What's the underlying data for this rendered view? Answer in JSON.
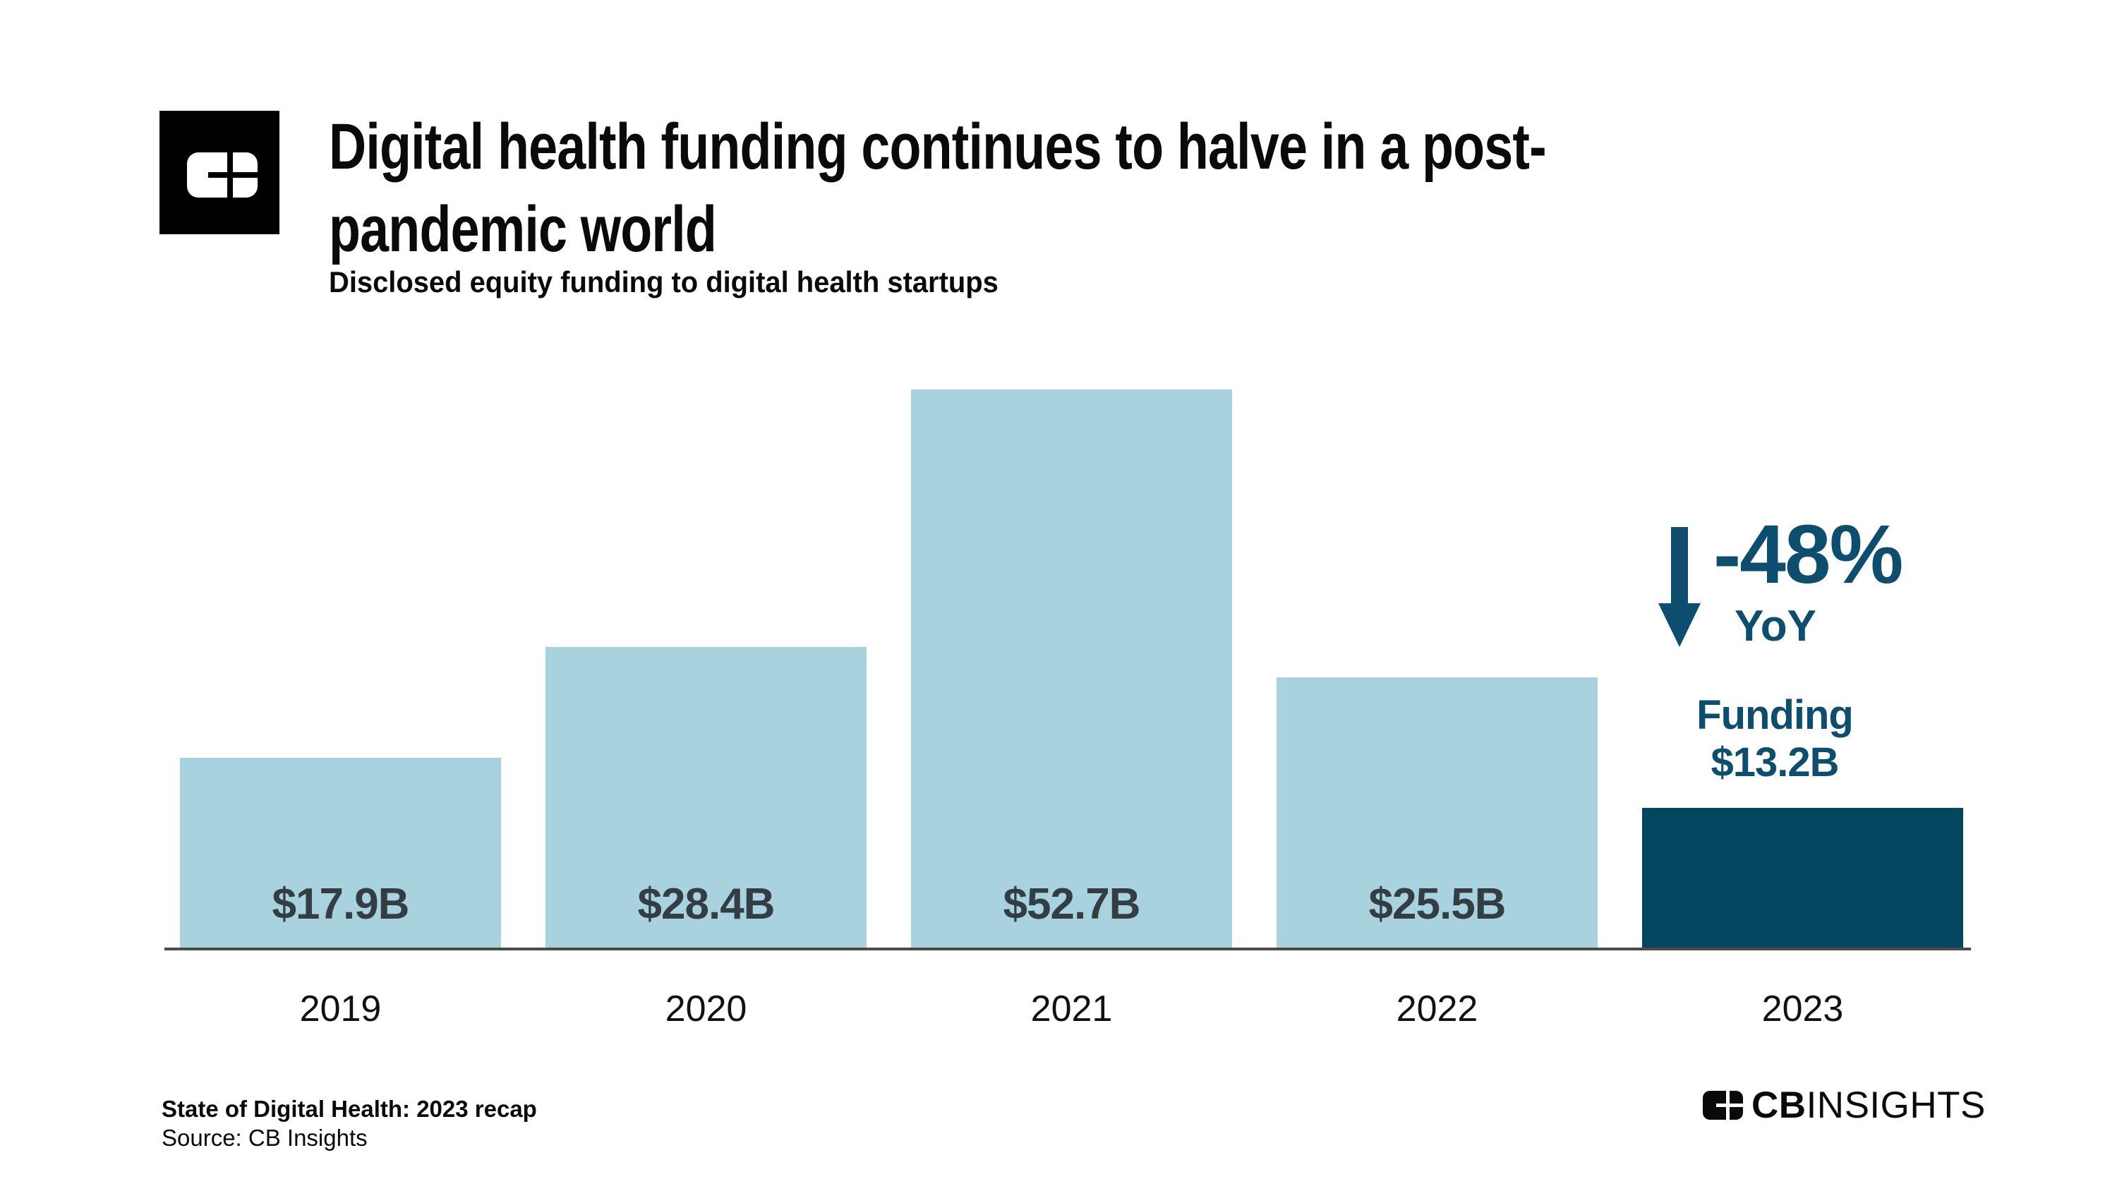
{
  "header": {
    "logo_icon": "cb-insights-block-mark",
    "title_line1": "Digital health funding continues to halve in a post-",
    "title_line2": "pandemic world",
    "subtitle": "Disclosed equity funding to digital health startups"
  },
  "chart_data": {
    "type": "bar",
    "title": "Digital health funding continues to halve in a post-pandemic world",
    "subtitle": "Disclosed equity funding to digital health startups",
    "categories": [
      "2019",
      "2020",
      "2021",
      "2022",
      "2023"
    ],
    "values": [
      17.9,
      28.4,
      52.7,
      25.5,
      13.2
    ],
    "value_labels": [
      "$17.9B",
      "$28.4B",
      "$52.7B",
      "$25.5B",
      "$13.2B"
    ],
    "unit": "USD billions",
    "xlabel": "",
    "ylabel": "",
    "ylim": [
      0,
      52.7
    ],
    "grid": false,
    "legend": false,
    "highlight_index": 4,
    "annotation": {
      "arrow_icon": "down-arrow-icon",
      "change": "-48%",
      "change_period": "YoY",
      "funding_label": "Funding",
      "funding_value": "$13.2B"
    },
    "colors": {
      "bar": "#A8D3DE",
      "highlight_bar": "#02465F",
      "value_label": "#333D44",
      "axis_line": "#4A4A4A",
      "year_label": "#111111",
      "annotation_text": "#0D4D6E"
    }
  },
  "footer": {
    "report_title": "State of Digital Health: 2023 recap",
    "source": "Source: CB Insights",
    "brand_cb": "CB",
    "brand_insights": "INSIGHTS"
  }
}
